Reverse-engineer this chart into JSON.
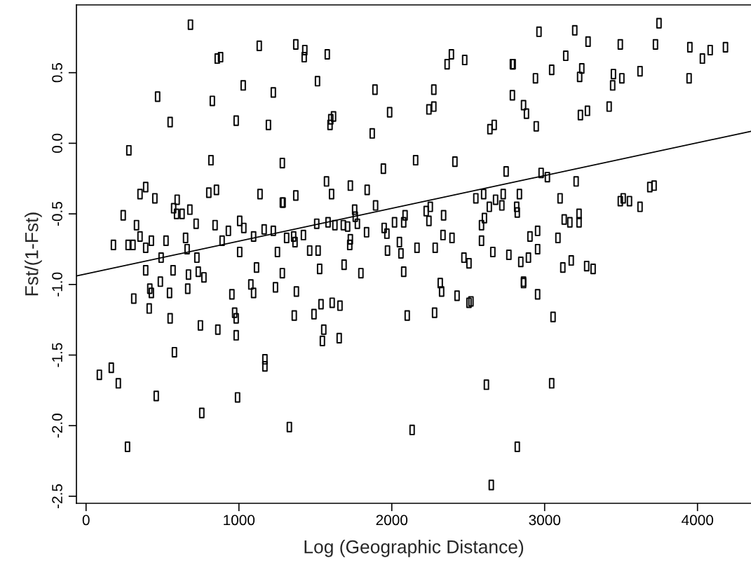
{
  "chart_data": {
    "type": "scatter",
    "xlabel": "Log (Geographic Distance)",
    "ylabel": "Fst/(1-Fst)",
    "xlim": [
      -63,
      4350
    ],
    "ylim": [
      -2.55,
      0.98
    ],
    "xticks": [
      0,
      1000,
      2000,
      3000,
      4000
    ],
    "yticks": [
      -2.5,
      {
        "value": -2,
        "label": "-2.0"
      },
      -1.5,
      {
        "value": -1,
        "label": "-1.0"
      },
      -0.5,
      {
        "value": 0,
        "label": "0.0"
      },
      0.5
    ],
    "grid": false,
    "series": [
      {
        "marker": "square",
        "color": "#000000",
        "x": [
          683,
          468,
          550,
          280,
          817,
          1133,
          858,
          880,
          1028,
          826,
          1225,
          982,
          1193,
          1284,
          353,
          390,
          450,
          596,
          573,
          592,
          628,
          679,
          243,
          803,
          853,
          1138,
          1284,
          330,
          353,
          179,
          275,
          307,
          390,
          427,
          523,
          491,
          661,
          651,
          720,
          844,
          931,
          890,
          1005,
          1032,
          1096,
          1165,
          1225,
          1005,
          1252,
          725,
          390,
          569,
          670,
          734,
          771,
          1115,
          1284,
          486,
          312,
          413,
          417,
          427,
          546,
          665,
          550,
          748,
          862,
          954,
          972,
          982,
          982,
          1078,
          1096,
          1239,
          1362,
          578,
          87,
          165,
          211,
          459,
          271,
          757,
          991,
          1170,
          1170,
          1330,
          1376,
          1491,
          1537,
          1610,
          1661,
          1555,
          1546,
          1656,
          2101,
          2280,
          2317,
          2326,
          2427,
          2505,
          2518,
          2619,
          2133,
          2651,
          2821,
          2862,
          2954,
          3055,
          3046,
          1372,
          1431,
          1427,
          1578,
          1514,
          1890,
          1601,
          1619,
          1596,
          1986,
          1872,
          2390,
          2362,
          2477,
          2789,
          2789,
          2275,
          2243,
          2275,
          2642,
          2670,
          1945,
          2156,
          2413,
          2748,
          1573,
          1729,
          1839,
          1606,
          1372,
          1289,
          1894,
          1757,
          1761,
          1509,
          1583,
          1628,
          1683,
          1711,
          1775,
          1312,
          1358,
          1367,
          1422,
          1463,
          1518,
          1729,
          1725,
          1835,
          1950,
          1968,
          2018,
          2078,
          2087,
          2225,
          2252,
          2243,
          2339,
          2550,
          2601,
          2679,
          2729,
          2638,
          2720,
          2606,
          2587,
          2587,
          1972,
          2060,
          2050,
          2165,
          2284,
          2335,
          2394,
          2661,
          2766,
          2472,
          2505,
          1528,
          1688,
          1798,
          2078,
          3748,
          2963,
          3197,
          3284,
          3495,
          3725,
          3950,
          4032,
          4083,
          4183,
          3138,
          2794,
          3046,
          3243,
          3229,
          2940,
          3450,
          3445,
          3505,
          3624,
          3945,
          2862,
          2881,
          2945,
          3234,
          3280,
          3422,
          2977,
          3018,
          3206,
          3688,
          3716,
          2835,
          3101,
          3495,
          3514,
          3555,
          3624,
          2817,
          2821,
          3225,
          3225,
          3128,
          3165,
          2954,
          2904,
          3087,
          2954,
          2844,
          2894,
          3119,
          3174,
          3275,
          3317,
          2862
        ],
        "values": [
          0.84,
          0.33,
          0.15,
          -0.05,
          -0.12,
          0.69,
          0.6,
          0.61,
          0.41,
          0.3,
          0.36,
          0.16,
          0.13,
          -0.14,
          -0.36,
          -0.31,
          -0.39,
          -0.4,
          -0.46,
          -0.5,
          -0.5,
          -0.47,
          -0.51,
          -0.35,
          -0.33,
          -0.36,
          -0.42,
          -0.58,
          -0.66,
          -0.72,
          -0.72,
          -0.72,
          -0.74,
          -0.69,
          -0.69,
          -0.81,
          -0.75,
          -0.67,
          -0.57,
          -0.58,
          -0.62,
          -0.69,
          -0.55,
          -0.6,
          -0.66,
          -0.61,
          -0.62,
          -0.77,
          -0.77,
          -0.81,
          -0.9,
          -0.9,
          -0.93,
          -0.91,
          -0.95,
          -0.88,
          -0.92,
          -0.98,
          -1.1,
          -1.17,
          -1.03,
          -1.06,
          -1.06,
          -1.03,
          -1.24,
          -1.29,
          -1.32,
          -1.07,
          -1.2,
          -1.24,
          -1.36,
          -1.0,
          -1.06,
          -1.02,
          -1.22,
          -1.48,
          -1.64,
          -1.59,
          -1.7,
          -1.79,
          -2.15,
          -1.91,
          -1.8,
          -1.53,
          -1.58,
          -2.01,
          -1.05,
          -1.21,
          -1.14,
          -1.13,
          -1.15,
          -1.32,
          -1.4,
          -1.38,
          -1.22,
          -1.2,
          -0.99,
          -1.05,
          -1.08,
          -1.13,
          -1.12,
          -1.71,
          -2.03,
          -2.42,
          -2.15,
          -0.99,
          -1.07,
          -1.23,
          -1.7,
          0.7,
          0.66,
          0.61,
          0.63,
          0.44,
          0.38,
          0.17,
          0.19,
          0.13,
          0.22,
          0.07,
          0.63,
          0.56,
          0.59,
          0.56,
          0.34,
          0.38,
          0.24,
          0.26,
          0.1,
          0.13,
          -0.18,
          -0.12,
          -0.13,
          -0.2,
          -0.27,
          -0.3,
          -0.33,
          -0.36,
          -0.37,
          -0.42,
          -0.44,
          -0.47,
          -0.52,
          -0.57,
          -0.56,
          -0.58,
          -0.58,
          -0.59,
          -0.57,
          -0.67,
          -0.66,
          -0.7,
          -0.65,
          -0.76,
          -0.76,
          -0.68,
          -0.72,
          -0.63,
          -0.6,
          -0.64,
          -0.56,
          -0.56,
          -0.51,
          -0.48,
          -0.45,
          -0.55,
          -0.51,
          -0.39,
          -0.36,
          -0.4,
          -0.36,
          -0.45,
          -0.44,
          -0.53,
          -0.58,
          -0.69,
          -0.76,
          -0.78,
          -0.7,
          -0.74,
          -0.74,
          -0.65,
          -0.67,
          -0.77,
          -0.79,
          -0.81,
          -0.85,
          -0.89,
          -0.86,
          -0.92,
          -0.91,
          0.85,
          0.79,
          0.8,
          0.72,
          0.7,
          0.7,
          0.68,
          0.6,
          0.66,
          0.68,
          0.62,
          0.56,
          0.52,
          0.53,
          0.47,
          0.46,
          0.49,
          0.41,
          0.46,
          0.51,
          0.46,
          0.27,
          0.21,
          0.12,
          0.2,
          0.23,
          0.26,
          -0.21,
          -0.24,
          -0.27,
          -0.31,
          -0.3,
          -0.36,
          -0.39,
          -0.41,
          -0.39,
          -0.41,
          -0.45,
          -0.45,
          -0.49,
          -0.5,
          -0.56,
          -0.54,
          -0.56,
          -0.62,
          -0.66,
          -0.67,
          -0.75,
          -0.84,
          -0.81,
          -0.88,
          -0.83,
          -0.87,
          -0.89,
          -0.98
        ]
      },
      {
        "type": "line",
        "color": "#000000",
        "x": [
          -63,
          4350
        ],
        "values": [
          -0.94,
          0.085
        ]
      }
    ]
  }
}
